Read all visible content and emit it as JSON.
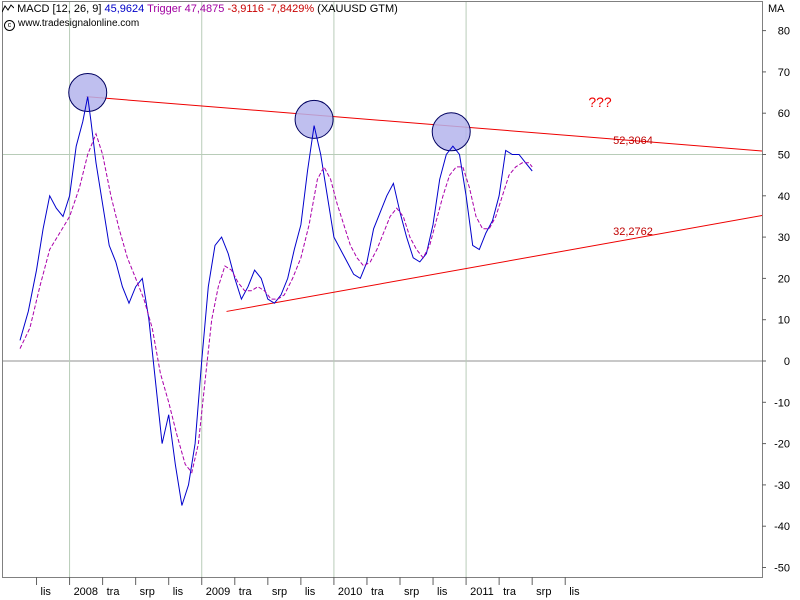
{
  "header": {
    "indicator": "MACD [12, 26, 9]",
    "macd_value": "45,9624",
    "trigger_label": "Trigger",
    "trigger_value": "47,4875",
    "diff_value": "-3,9116",
    "diff_pct": "-7,8429%",
    "symbol": "(XAUUSD GTM)",
    "website": "www.tradesignalonline.com",
    "axis_unit": "MA"
  },
  "colors": {
    "macd": "#0000cc",
    "trigger": "#aa00aa",
    "trendline": "#ee0000",
    "circle_fill": "#b4b4ec",
    "grid": "#b8ccb8",
    "zero_line": "#909090"
  },
  "chart_data": {
    "type": "line",
    "ylim": [
      -52,
      86
    ],
    "yticks": [
      80,
      70,
      60,
      50,
      40,
      30,
      20,
      10,
      0,
      -10,
      -20,
      -30,
      -40,
      -50
    ],
    "ylabel": "MA",
    "x_months": [
      0,
      46
    ],
    "x_ticks": [
      {
        "label": "lis",
        "m": 1
      },
      {
        "label": "2008",
        "m": 3
      },
      {
        "label": "tra",
        "m": 5
      },
      {
        "label": "srp",
        "m": 7
      },
      {
        "label": "lis",
        "m": 9
      },
      {
        "label": "2009",
        "m": 11
      },
      {
        "label": "tra",
        "m": 13
      },
      {
        "label": "srp",
        "m": 15
      },
      {
        "label": "lis",
        "m": 17
      },
      {
        "label": "2010",
        "m": 19
      },
      {
        "label": "tra",
        "m": 21
      },
      {
        "label": "srp",
        "m": 23
      },
      {
        "label": "lis",
        "m": 25
      },
      {
        "label": "2011",
        "m": 27
      },
      {
        "label": "tra",
        "m": 29
      },
      {
        "label": "srp",
        "m": 31
      },
      {
        "label": "lis",
        "m": 33
      }
    ],
    "series": [
      {
        "key": "macd",
        "name": "MACD",
        "points": [
          [
            0.0,
            5
          ],
          [
            0.5,
            12
          ],
          [
            1.0,
            22
          ],
          [
            1.4,
            32
          ],
          [
            1.8,
            40
          ],
          [
            2.2,
            37
          ],
          [
            2.6,
            35
          ],
          [
            3.0,
            40
          ],
          [
            3.4,
            52
          ],
          [
            3.8,
            58
          ],
          [
            4.1,
            64
          ],
          [
            4.3,
            58
          ],
          [
            4.6,
            48
          ],
          [
            5.0,
            38
          ],
          [
            5.4,
            28
          ],
          [
            5.8,
            24
          ],
          [
            6.2,
            18
          ],
          [
            6.6,
            14
          ],
          [
            7.0,
            18
          ],
          [
            7.4,
            20
          ],
          [
            7.8,
            10
          ],
          [
            8.2,
            -5
          ],
          [
            8.6,
            -20
          ],
          [
            9.0,
            -13
          ],
          [
            9.4,
            -25
          ],
          [
            9.8,
            -35
          ],
          [
            10.2,
            -30
          ],
          [
            10.6,
            -20
          ],
          [
            11.0,
            0
          ],
          [
            11.4,
            18
          ],
          [
            11.8,
            28
          ],
          [
            12.2,
            30
          ],
          [
            12.6,
            26
          ],
          [
            13.0,
            20
          ],
          [
            13.4,
            15
          ],
          [
            13.8,
            18
          ],
          [
            14.2,
            22
          ],
          [
            14.6,
            20
          ],
          [
            15.0,
            15
          ],
          [
            15.4,
            14
          ],
          [
            15.8,
            16
          ],
          [
            16.2,
            20
          ],
          [
            16.6,
            27
          ],
          [
            17.0,
            33
          ],
          [
            17.4,
            46
          ],
          [
            17.8,
            57
          ],
          [
            18.2,
            50
          ],
          [
            18.6,
            40
          ],
          [
            19.0,
            30
          ],
          [
            19.4,
            27
          ],
          [
            19.8,
            24
          ],
          [
            20.2,
            21
          ],
          [
            20.6,
            20
          ],
          [
            21.0,
            24
          ],
          [
            21.4,
            32
          ],
          [
            21.8,
            36
          ],
          [
            22.2,
            40
          ],
          [
            22.6,
            43
          ],
          [
            23.0,
            36
          ],
          [
            23.4,
            30
          ],
          [
            23.8,
            25
          ],
          [
            24.2,
            24
          ],
          [
            24.6,
            26
          ],
          [
            25.0,
            33
          ],
          [
            25.4,
            44
          ],
          [
            25.8,
            50
          ],
          [
            26.2,
            52
          ],
          [
            26.6,
            50
          ],
          [
            27.0,
            40
          ],
          [
            27.4,
            28
          ],
          [
            27.8,
            27
          ],
          [
            28.2,
            31
          ],
          [
            28.6,
            34
          ],
          [
            29.0,
            40
          ],
          [
            29.4,
            51
          ],
          [
            29.8,
            50
          ],
          [
            30.2,
            50
          ],
          [
            30.6,
            48
          ],
          [
            31.0,
            46
          ]
        ]
      },
      {
        "key": "trigger",
        "name": "Trigger",
        "points": [
          [
            0.0,
            3
          ],
          [
            0.6,
            8
          ],
          [
            1.2,
            18
          ],
          [
            1.8,
            27
          ],
          [
            2.4,
            31
          ],
          [
            3.0,
            35
          ],
          [
            3.6,
            42
          ],
          [
            4.1,
            50
          ],
          [
            4.6,
            55
          ],
          [
            5.0,
            50
          ],
          [
            5.5,
            40
          ],
          [
            6.0,
            32
          ],
          [
            6.5,
            25
          ],
          [
            7.0,
            20
          ],
          [
            7.5,
            15
          ],
          [
            8.0,
            8
          ],
          [
            8.5,
            -3
          ],
          [
            9.0,
            -10
          ],
          [
            9.5,
            -18
          ],
          [
            10.0,
            -25
          ],
          [
            10.4,
            -27
          ],
          [
            10.8,
            -20
          ],
          [
            11.2,
            -5
          ],
          [
            11.6,
            10
          ],
          [
            12.0,
            18
          ],
          [
            12.4,
            23
          ],
          [
            12.8,
            22
          ],
          [
            13.2,
            19
          ],
          [
            13.6,
            17
          ],
          [
            14.0,
            17
          ],
          [
            14.4,
            18
          ],
          [
            14.8,
            17
          ],
          [
            15.2,
            15
          ],
          [
            15.6,
            15
          ],
          [
            16.0,
            16
          ],
          [
            16.5,
            20
          ],
          [
            17.0,
            25
          ],
          [
            17.5,
            33
          ],
          [
            18.0,
            44
          ],
          [
            18.4,
            47
          ],
          [
            18.8,
            44
          ],
          [
            19.2,
            38
          ],
          [
            19.6,
            33
          ],
          [
            20.0,
            28
          ],
          [
            20.4,
            25
          ],
          [
            20.8,
            23
          ],
          [
            21.2,
            24
          ],
          [
            21.6,
            27
          ],
          [
            22.0,
            31
          ],
          [
            22.4,
            35
          ],
          [
            22.8,
            37
          ],
          [
            23.2,
            35
          ],
          [
            23.6,
            30
          ],
          [
            24.0,
            27
          ],
          [
            24.4,
            25
          ],
          [
            24.8,
            28
          ],
          [
            25.2,
            34
          ],
          [
            25.6,
            40
          ],
          [
            26.0,
            45
          ],
          [
            26.4,
            47
          ],
          [
            26.8,
            47
          ],
          [
            27.2,
            42
          ],
          [
            27.6,
            35
          ],
          [
            28.0,
            32
          ],
          [
            28.4,
            32
          ],
          [
            28.8,
            35
          ],
          [
            29.2,
            40
          ],
          [
            29.6,
            45
          ],
          [
            30.0,
            47
          ],
          [
            30.4,
            48
          ],
          [
            30.8,
            48
          ],
          [
            31.0,
            47
          ]
        ]
      }
    ],
    "trendlines": [
      {
        "name": "upper",
        "from": [
          4.0,
          64
        ],
        "to": [
          46,
          50.5
        ],
        "label": "52,3064",
        "label_at": [
          35.9,
          52.5
        ]
      },
      {
        "name": "lower",
        "from": [
          12.5,
          12
        ],
        "to": [
          46,
          36
        ],
        "label": "32,2762",
        "label_at": [
          35.9,
          30.5
        ]
      }
    ],
    "circles": [
      {
        "m": 4.1,
        "v": 65
      },
      {
        "m": 17.8,
        "v": 58.5
      },
      {
        "m": 26.1,
        "v": 55.5
      }
    ],
    "annotation": {
      "text": "???",
      "m": 34.4,
      "v": 61.5
    }
  }
}
